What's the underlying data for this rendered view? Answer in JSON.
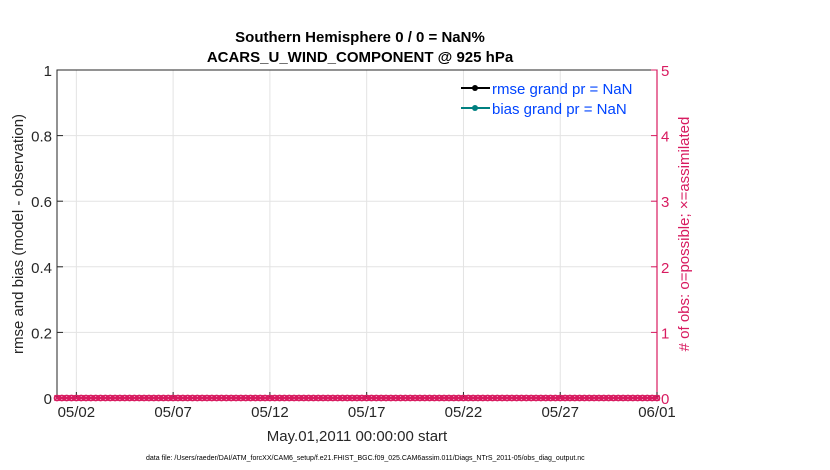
{
  "chart_data": {
    "type": "line",
    "title": [
      "Southern Hemisphere 0 / 0 = NaN%",
      "ACARS_U_WIND_COMPONENT @ 925 hPa"
    ],
    "xlabel": "May.01,2011 00:00:00 start",
    "ylabel_left": "rmse and bias (model - observation)",
    "ylabel_right": "# of obs: o=possible; ×=assimilated",
    "x_range": [
      "2011-05-01",
      "2011-06-01"
    ],
    "x_ticks": [
      "05/02",
      "05/07",
      "05/12",
      "05/17",
      "05/22",
      "05/27",
      "06/01"
    ],
    "x_tick_days": [
      1,
      6,
      11,
      16,
      21,
      26,
      31
    ],
    "ylim_left": [
      0,
      1
    ],
    "y_ticks_left": [
      "0",
      "0.2",
      "0.4",
      "0.6",
      "0.8",
      "1"
    ],
    "ylim_right": [
      0,
      5
    ],
    "y_ticks_right": [
      "0",
      "1",
      "2",
      "3",
      "4",
      "5"
    ],
    "grid": true,
    "legend_position": "top-right",
    "series": [
      {
        "name": "rmse grand pr = NaN",
        "color": "#000000",
        "values": []
      },
      {
        "name": "bias grand pr = NaN",
        "color": "#008080",
        "values": []
      }
    ],
    "obs_counts": {
      "interval_hours": 6,
      "possible": 0,
      "assimilated": 0,
      "color": "#d81b60"
    },
    "footer": "data file: /Users/raeder/DAI/ATM_forcXX/CAM6_setup/f.e21.FHIST_BGC.f09_025.CAM6assim.011/Diags_NTrS_2011-05/obs_diag_output.nc"
  },
  "colors": {
    "legend_text": "#0044ff",
    "right_axis": "#d81b60"
  }
}
